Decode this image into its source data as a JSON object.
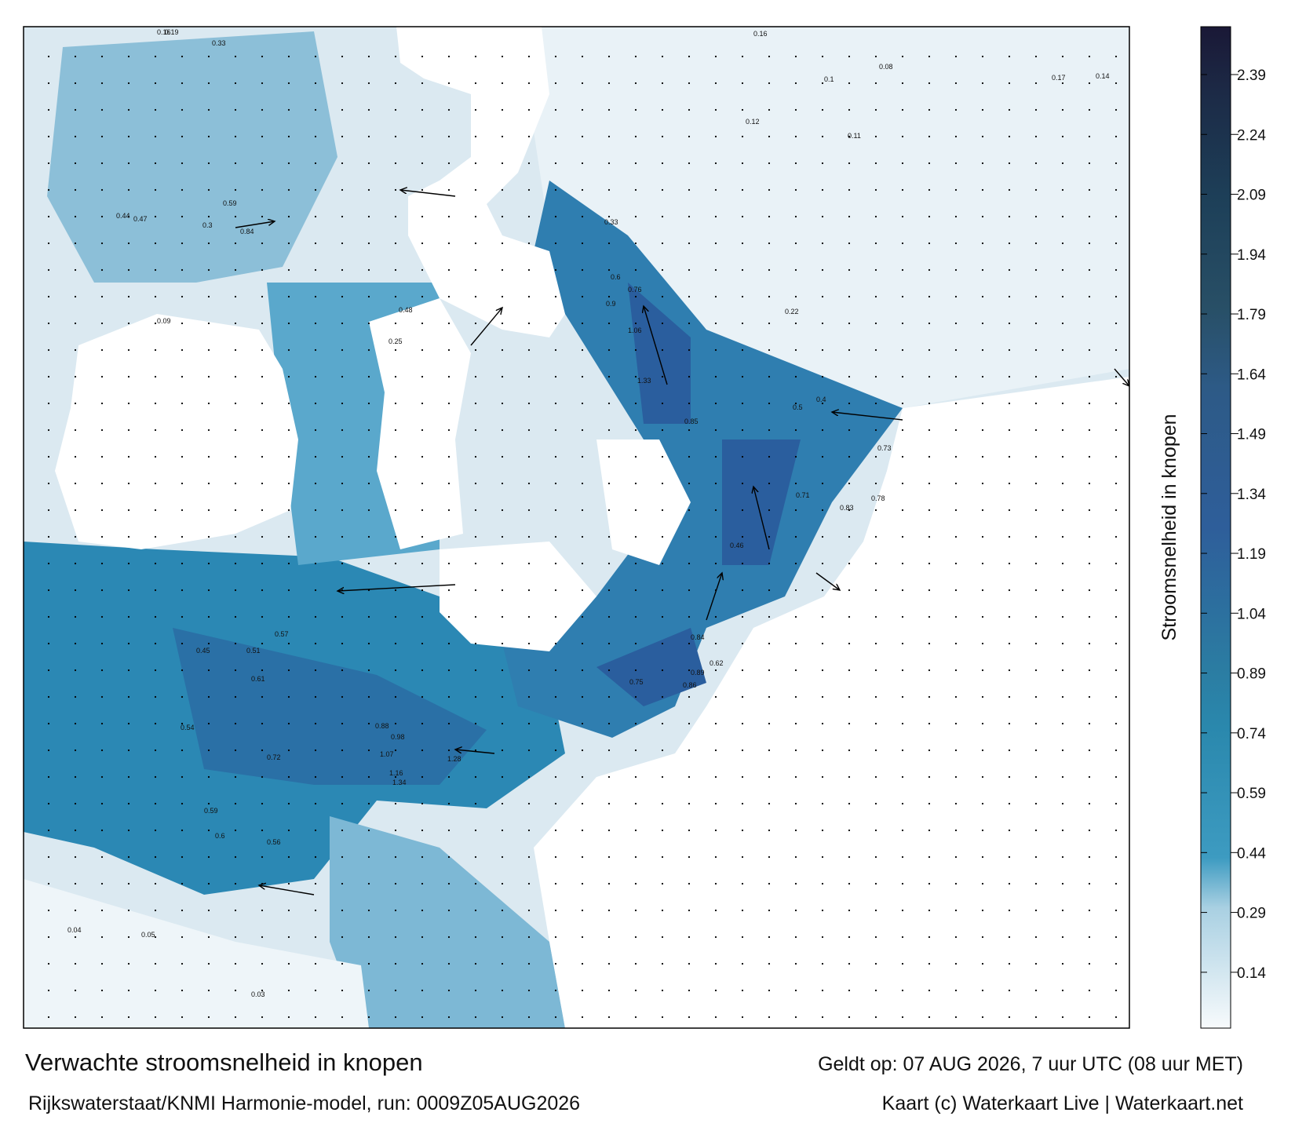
{
  "map": {
    "labels": [
      "0.19",
      "0.33",
      "0.3",
      "0.84",
      "0.59",
      "0.47",
      "0.44",
      "0.16",
      "0.09",
      "0.48",
      "0.25",
      "0.33",
      "0.6",
      "0.76",
      "0.9",
      "1.06",
      "1.33",
      "0.85",
      "0.5",
      "0.4",
      "0.73",
      "0.78",
      "0.71",
      "0.83",
      "0.46",
      "0.84",
      "0.86",
      "0.75",
      "0.89",
      "0.62",
      "0.57",
      "0.54",
      "0.61",
      "0.72",
      "1.07",
      "1.16",
      "1.28",
      "1.34",
      "0.98",
      "0.88",
      "0.59",
      "0.56",
      "0.6",
      "0.45",
      "0.51",
      "0.04",
      "0.05",
      "0.03",
      "0.16",
      "0.11",
      "0.12",
      "0.14",
      "0.1",
      "0.08",
      "0.22",
      "0.17"
    ]
  },
  "colorbar": {
    "label": "Stroomsnelheid in knopen",
    "lim": [
      0,
      2.51
    ],
    "ticks": [
      0.14,
      0.29,
      0.44,
      0.59,
      0.74,
      0.89,
      1.04,
      1.19,
      1.34,
      1.49,
      1.64,
      1.79,
      1.94,
      2.09,
      2.24,
      2.39
    ]
  },
  "footer": {
    "title": "Verwachte stroomsnelheid in knopen",
    "valid": "Geldt op: 07 AUG 2026, 7 uur UTC (08 uur MET)",
    "model": "Rijkswaterstaat/KNMI Harmonie-model, run: 0009Z05AUG2026",
    "credit": "Kaart (c) Waterkaart Live | Waterkaart.net"
  }
}
